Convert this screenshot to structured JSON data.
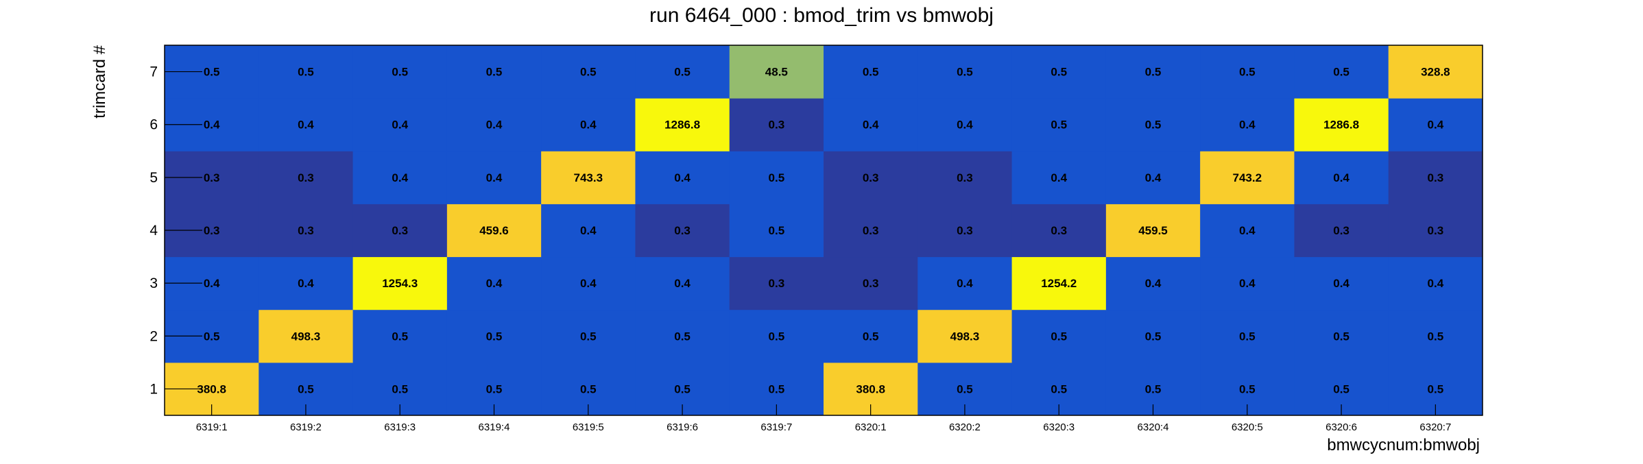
{
  "chart_data": {
    "type": "heatmap",
    "title": "run 6464_000 : bmod_trim vs bmwobj",
    "xlabel": "bmwcycnum:bmwobj",
    "ylabel": "trimcard #",
    "x_categories": [
      "6319:1",
      "6319:2",
      "6319:3",
      "6319:4",
      "6319:5",
      "6319:6",
      "6319:7",
      "6320:1",
      "6320:2",
      "6320:3",
      "6320:4",
      "6320:5",
      "6320:6",
      "6320:7"
    ],
    "y_categories": [
      "1",
      "2",
      "3",
      "4",
      "5",
      "6",
      "7"
    ],
    "values": [
      [
        380.8,
        0.5,
        0.5,
        0.5,
        0.5,
        0.5,
        0.5,
        380.8,
        0.5,
        0.5,
        0.5,
        0.5,
        0.5,
        0.5
      ],
      [
        0.5,
        498.3,
        0.5,
        0.5,
        0.5,
        0.5,
        0.5,
        0.5,
        498.3,
        0.5,
        0.5,
        0.5,
        0.5,
        0.5
      ],
      [
        0.4,
        0.4,
        1254.3,
        0.4,
        0.4,
        0.4,
        0.3,
        0.3,
        0.4,
        1254.2,
        0.4,
        0.4,
        0.4,
        0.4
      ],
      [
        0.3,
        0.3,
        0.3,
        459.6,
        0.4,
        0.3,
        0.5,
        0.3,
        0.3,
        0.3,
        459.5,
        0.4,
        0.3,
        0.3
      ],
      [
        0.3,
        0.3,
        0.4,
        0.4,
        743.3,
        0.4,
        0.5,
        0.3,
        0.3,
        0.4,
        0.4,
        743.2,
        0.4,
        0.3
      ],
      [
        0.4,
        0.4,
        0.4,
        0.4,
        0.4,
        1286.8,
        0.3,
        0.4,
        0.4,
        0.5,
        0.5,
        0.4,
        1286.8,
        0.4
      ],
      [
        0.5,
        0.5,
        0.5,
        0.5,
        0.5,
        0.5,
        48.5,
        0.5,
        0.5,
        0.5,
        0.5,
        0.5,
        0.5,
        328.8
      ]
    ],
    "colors": {
      "dark_blue": "#2b3c9e",
      "blue": "#1753ce",
      "green": "#94bc6e",
      "gold": "#f9cd2c",
      "yellow": "#f8f80c"
    },
    "legend": "none",
    "grid": false
  }
}
